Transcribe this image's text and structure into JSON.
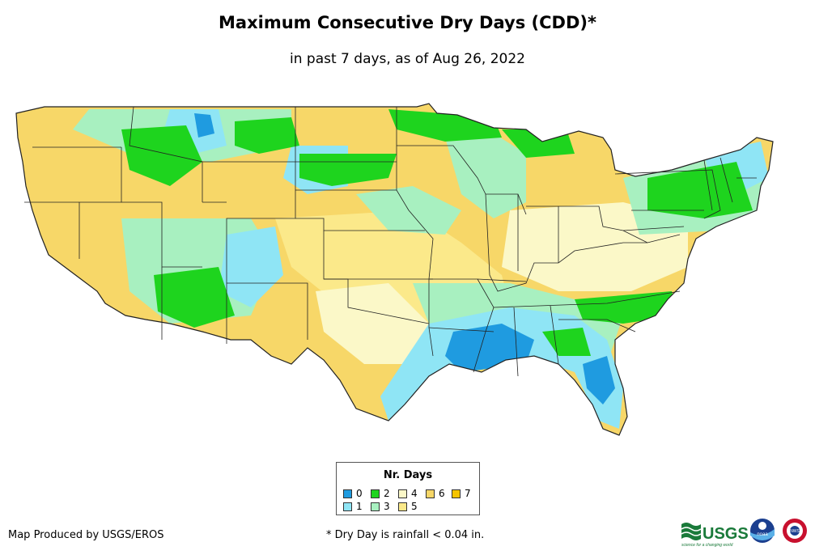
{
  "title": "Maximum Consecutive Dry Days (CDD)*",
  "subtitle": "in past 7 days, as of Aug 26, 2022",
  "legend": {
    "title": "Nr. Days",
    "items": [
      {
        "label": "0",
        "color": "#1f9be0"
      },
      {
        "label": "1",
        "color": "#8fe5f5"
      },
      {
        "label": "2",
        "color": "#1ed41e"
      },
      {
        "label": "3",
        "color": "#a8f0c0"
      },
      {
        "label": "4",
        "color": "#fbf8c8"
      },
      {
        "label": "5",
        "color": "#fbe98a"
      },
      {
        "label": "6",
        "color": "#f7d768"
      },
      {
        "label": "7",
        "color": "#f5c400"
      }
    ]
  },
  "credit": "Map Produced by USGS/EROS",
  "footnote": "* Dry Day is rainfall < 0.04 in.",
  "logos": {
    "usgs": "USGS",
    "usgs_tagline": "science for a changing world",
    "noaa": "noaa",
    "nws": "NWS"
  }
}
